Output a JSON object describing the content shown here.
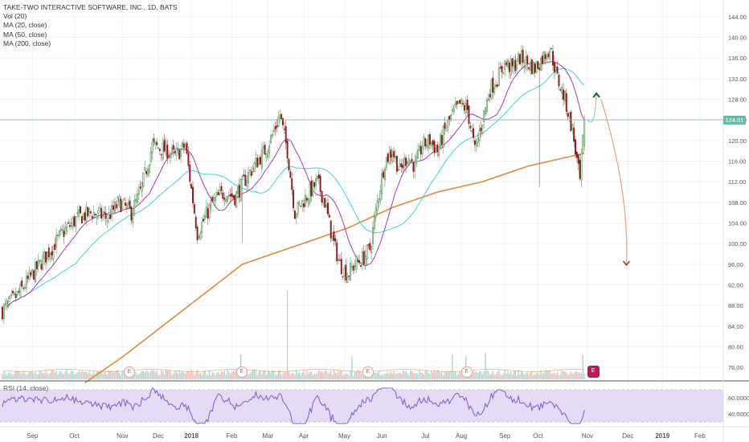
{
  "legend": {
    "symbol": "TAKE-TWO INTERACTIVE SOFTWARE, INC., 1D, BATS",
    "vol": "Vol (20)",
    "ma20": "MA (20, close)",
    "ma50": "MA (50, close)",
    "ma200": "MA (200, close)"
  },
  "rsi_label": "RSI (14, close)",
  "last_price": "124.01",
  "earnings_marker": "E",
  "colors": {
    "up": "#26a69a",
    "down": "#ef5350",
    "ma20": "#9c27b0",
    "ma50": "#40d3dc",
    "ma200": "#e08a3a",
    "rsi": "#7e57c2",
    "rsi_band": "#e6dbf7",
    "arrow_up": "#1b5e20",
    "arrow_down": "#a5352a"
  },
  "chart_data": {
    "type": "candlestick",
    "price_axis": {
      "ticks": [
        76,
        80,
        84,
        88,
        92,
        96,
        100,
        104,
        108,
        112,
        116,
        120,
        124,
        128,
        132,
        136,
        140,
        144
      ],
      "ylim": [
        74,
        146
      ]
    },
    "rsi_axis": {
      "ticks": [
        "40.0000",
        "60.0000"
      ],
      "ylim": [
        25,
        75
      ],
      "band": [
        30,
        70
      ]
    },
    "x_ticks": [
      "Sep",
      "Oct",
      "Nov",
      "Dec",
      "2018",
      "Feb",
      "Mar",
      "Apr",
      "May",
      "Jun",
      "Jul",
      "Aug",
      "Sep",
      "Oct",
      "Nov",
      "Dec",
      "2019",
      "Feb"
    ],
    "bold_ticks": [
      "2018",
      "2019"
    ],
    "price_anchors": [
      [
        0,
        87
      ],
      [
        10,
        90
      ],
      [
        20,
        94
      ],
      [
        30,
        98
      ],
      [
        40,
        102
      ],
      [
        50,
        105
      ],
      [
        60,
        106
      ],
      [
        70,
        105
      ],
      [
        78,
        108
      ],
      [
        86,
        106
      ],
      [
        92,
        110
      ],
      [
        100,
        119
      ],
      [
        110,
        118
      ],
      [
        115,
        117
      ],
      [
        122,
        119
      ],
      [
        130,
        102
      ],
      [
        140,
        108
      ],
      [
        148,
        110
      ],
      [
        155,
        109
      ],
      [
        163,
        113
      ],
      [
        170,
        116
      ],
      [
        175,
        118
      ],
      [
        180,
        121
      ],
      [
        185,
        125
      ],
      [
        190,
        118
      ],
      [
        195,
        106
      ],
      [
        200,
        108
      ],
      [
        205,
        110
      ],
      [
        210,
        112
      ],
      [
        215,
        108
      ],
      [
        220,
        101
      ],
      [
        225,
        96
      ],
      [
        230,
        94
      ],
      [
        235,
        96
      ],
      [
        240,
        97
      ],
      [
        245,
        99
      ],
      [
        250,
        108
      ],
      [
        255,
        116
      ],
      [
        260,
        118
      ],
      [
        265,
        114
      ],
      [
        270,
        117
      ],
      [
        275,
        115
      ],
      [
        280,
        119
      ],
      [
        285,
        120
      ],
      [
        290,
        118
      ],
      [
        295,
        122
      ],
      [
        300,
        125
      ],
      [
        305,
        127
      ],
      [
        310,
        126
      ],
      [
        315,
        118
      ],
      [
        320,
        124
      ],
      [
        325,
        130
      ],
      [
        330,
        132
      ],
      [
        335,
        135
      ],
      [
        340,
        134
      ],
      [
        345,
        136
      ],
      [
        350,
        135
      ],
      [
        355,
        134
      ],
      [
        360,
        136
      ],
      [
        365,
        138
      ],
      [
        370,
        132
      ],
      [
        375,
        128
      ],
      [
        380,
        122
      ],
      [
        385,
        112
      ],
      [
        388,
        124
      ]
    ],
    "spikes": {
      "bar_160_low": 100,
      "bar_358_low": 111,
      "bar_355_high": 138
    },
    "ma200_anchors": [
      [
        0,
        62
      ],
      [
        40,
        70
      ],
      [
        80,
        78
      ],
      [
        120,
        87
      ],
      [
        160,
        96
      ],
      [
        200,
        100
      ],
      [
        230,
        103
      ],
      [
        260,
        107
      ],
      [
        290,
        110
      ],
      [
        320,
        112
      ],
      [
        350,
        115
      ],
      [
        380,
        117
      ],
      [
        388,
        117.5
      ]
    ],
    "last_bar_index": 388,
    "bars_total": 480,
    "x_tick_bars": [
      20,
      48,
      80,
      104,
      126,
      153,
      177,
      201,
      228,
      253,
      282,
      306,
      335,
      357,
      390,
      417,
      440,
      465
    ],
    "earnings_bars": [
      84,
      159,
      243,
      309
    ],
    "future_earnings_bar": 393,
    "volume_spikes": [
      [
        190,
        5.0
      ],
      [
        322,
        1.5
      ],
      [
        233,
        1.3
      ],
      [
        159,
        1.4
      ],
      [
        309,
        1.3
      ],
      [
        387,
        1.4
      ],
      [
        300,
        1.4
      ]
    ],
    "projection": {
      "up_target": 129,
      "down_target": 96,
      "start_bar": 388,
      "peak_bar": 398,
      "end_bar": 416
    }
  }
}
